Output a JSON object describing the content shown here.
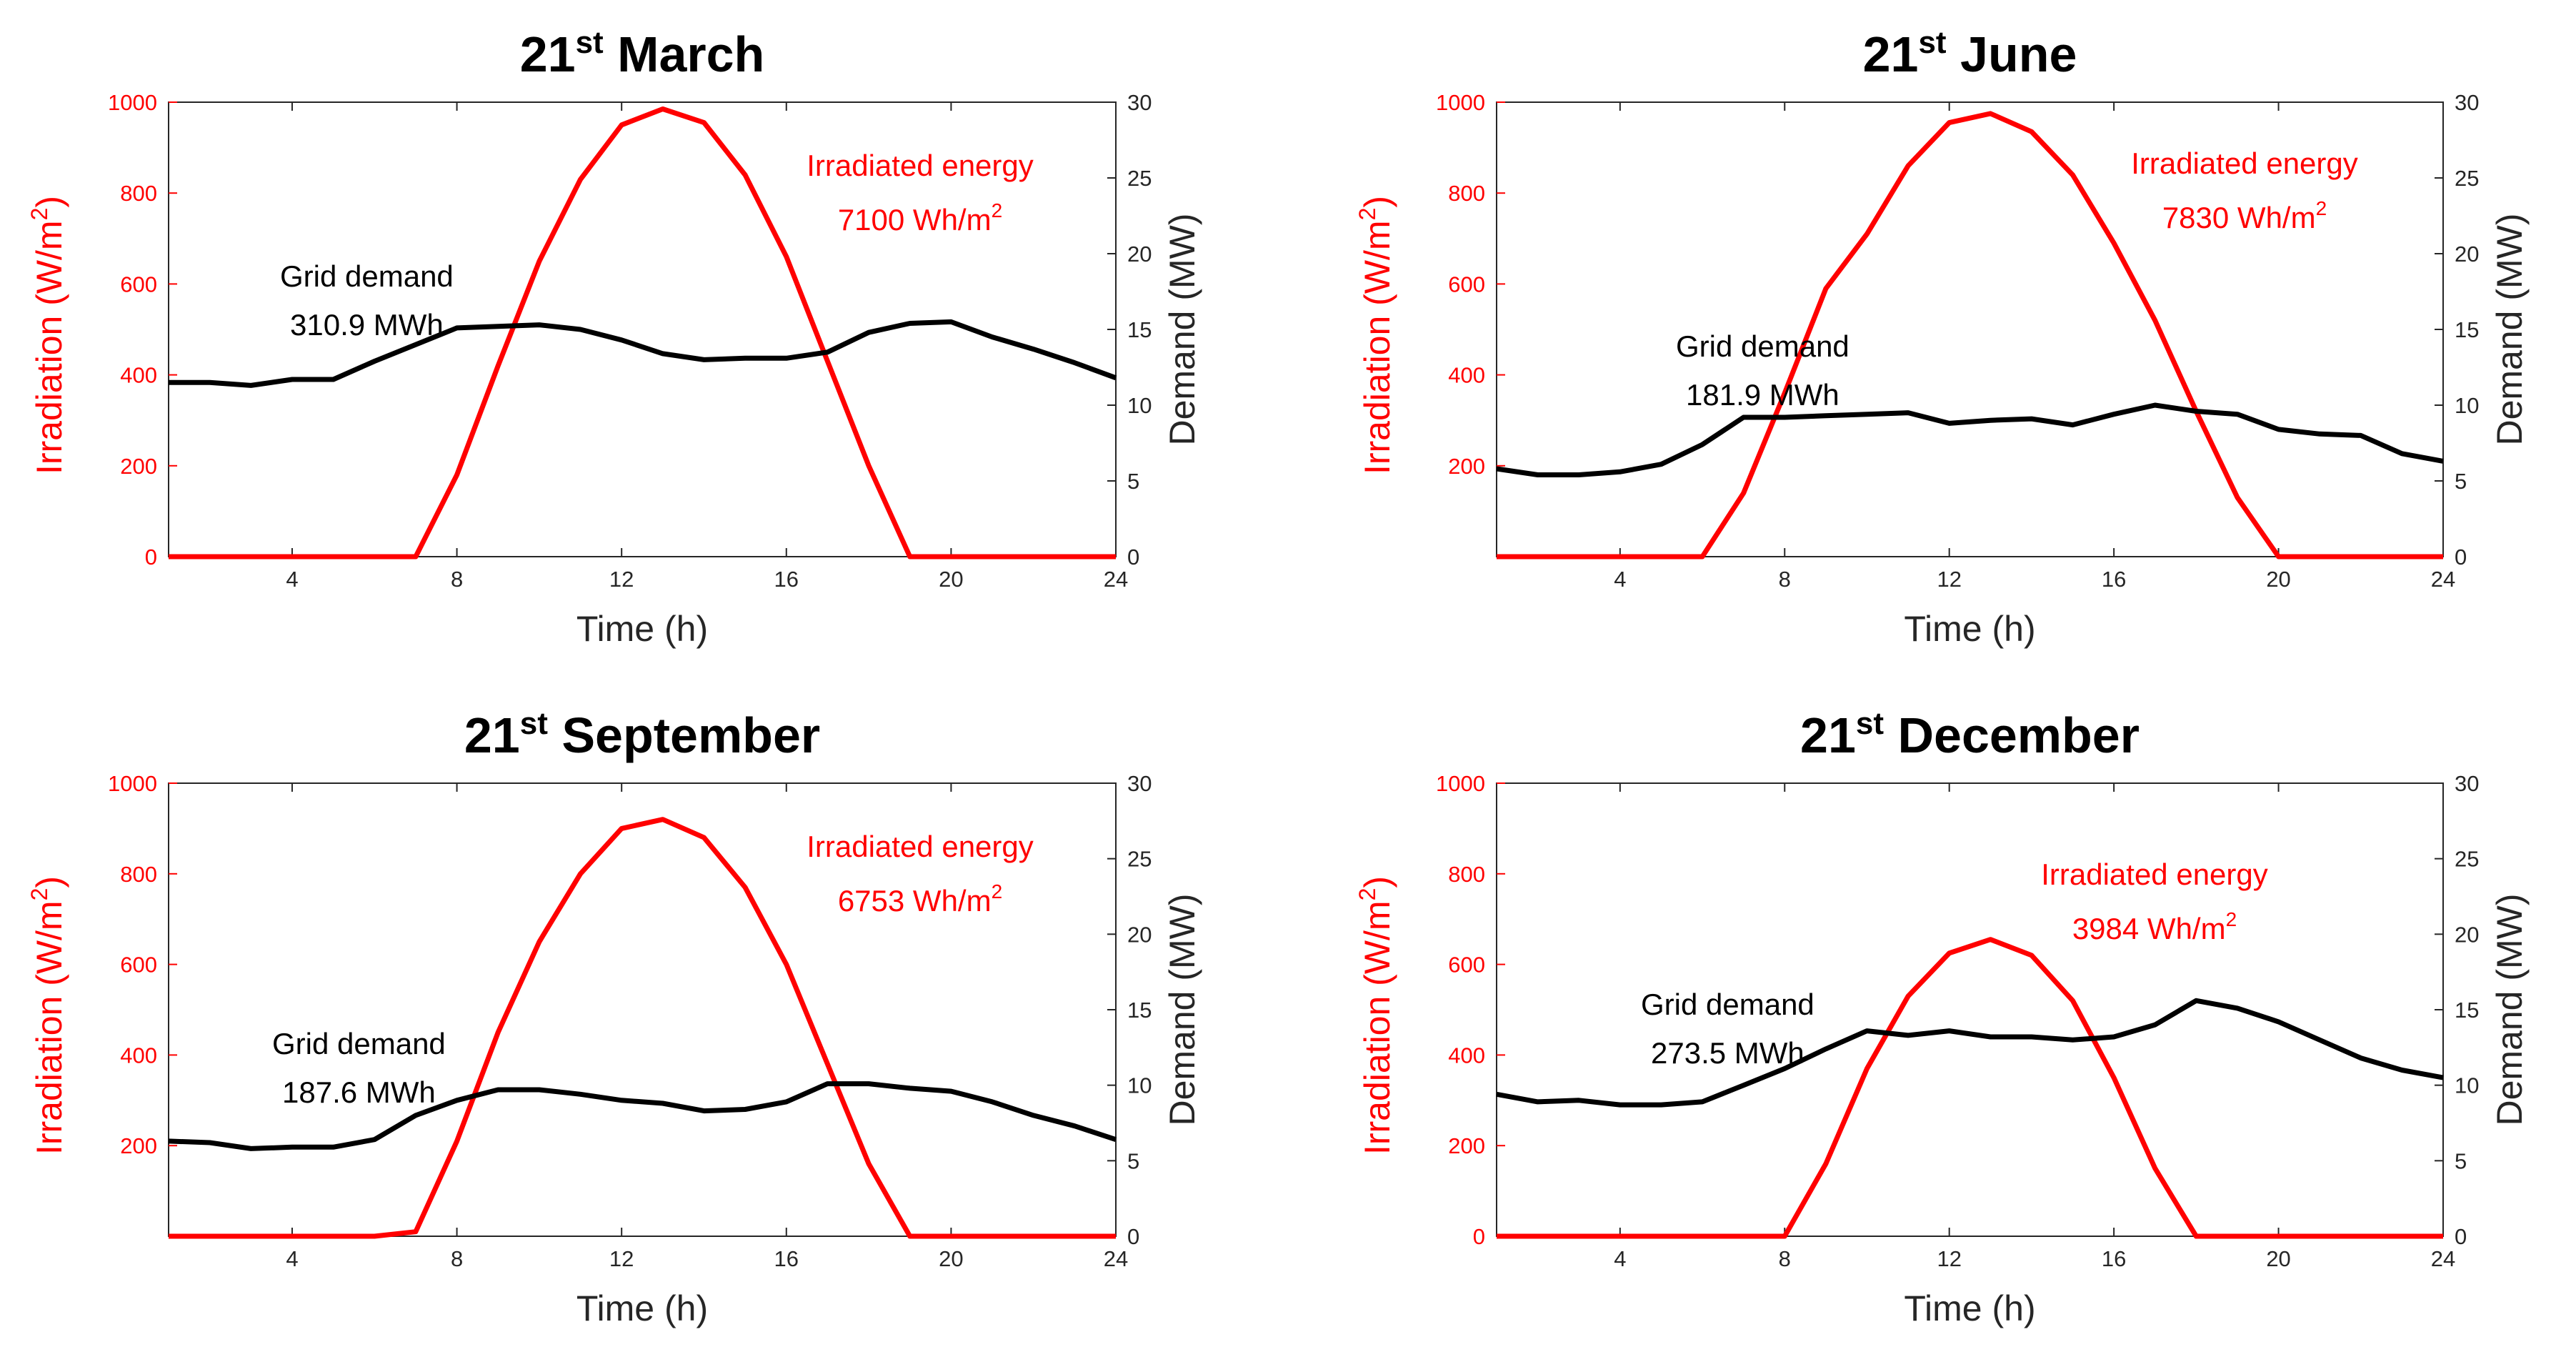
{
  "chart_data": [
    {
      "type": "line",
      "title": {
        "day": "21",
        "suffix": "st",
        "month": " March"
      },
      "xlabel": "Time (h)",
      "ylabel_left": {
        "text": "Irradiation (W/m",
        "sup": "2",
        "close": ")"
      },
      "ylabel_right": "Demand (MW)",
      "xlim": [
        1,
        24
      ],
      "xticks": [
        4,
        8,
        12,
        16,
        20,
        24
      ],
      "ylim_left": [
        0,
        1000
      ],
      "yticks_left": [
        0,
        200,
        400,
        600,
        800,
        1000
      ],
      "ylim_right": [
        0,
        30
      ],
      "yticks_right": [
        0,
        5,
        10,
        15,
        20,
        25,
        30
      ],
      "irradiation": {
        "name": "Irradiation",
        "axis": "left",
        "color": "#ff0000",
        "x": [
          1,
          2,
          3,
          4,
          5,
          6,
          7,
          8,
          9,
          10,
          11,
          12,
          13,
          14,
          15,
          16,
          17,
          18,
          19,
          20,
          21,
          22,
          23,
          24
        ],
        "y": [
          0,
          0,
          0,
          0,
          0,
          0,
          0,
          180,
          420,
          650,
          830,
          950,
          985,
          955,
          840,
          660,
          430,
          200,
          0,
          0,
          0,
          0,
          0,
          0
        ]
      },
      "demand": {
        "name": "Demand",
        "axis": "right",
        "color": "#000000",
        "x": [
          1,
          2,
          3,
          4,
          5,
          6,
          7,
          8,
          9,
          10,
          11,
          12,
          13,
          14,
          15,
          16,
          17,
          18,
          19,
          20,
          21,
          22,
          23,
          24
        ],
        "y": [
          11.5,
          11.5,
          11.3,
          11.7,
          11.7,
          12.9,
          14,
          15.1,
          15.2,
          15.3,
          15,
          14.3,
          13.4,
          13,
          13.1,
          13.1,
          13.5,
          14.8,
          15.4,
          15.5,
          14.5,
          13.7,
          12.8,
          11.8
        ]
      },
      "annotations": {
        "energy_label": "Irradiated energy",
        "energy_value": "7100 Wh/m",
        "energy_sup": "2",
        "demand_label": "Grid demand",
        "demand_value": "310.9 MWh"
      }
    },
    {
      "type": "line",
      "title": {
        "day": "21",
        "suffix": "st",
        "month": " June"
      },
      "xlabel": "Time (h)",
      "ylabel_left": {
        "text": "Irradiation (W/m",
        "sup": "2",
        "close": ")"
      },
      "ylabel_right": "Demand (MW)",
      "xlim": [
        1,
        24
      ],
      "xticks": [
        4,
        8,
        12,
        16,
        20,
        24
      ],
      "ylim_left": [
        0,
        1000
      ],
      "yticks_left": [
        200,
        400,
        600,
        800,
        1000
      ],
      "ylim_right": [
        0,
        30
      ],
      "yticks_right": [
        0,
        5,
        10,
        15,
        20,
        25,
        30
      ],
      "irradiation": {
        "name": "Irradiation",
        "axis": "left",
        "color": "#ff0000",
        "x": [
          1,
          2,
          3,
          4,
          5,
          6,
          7,
          8,
          9,
          10,
          11,
          12,
          13,
          14,
          15,
          16,
          17,
          18,
          19,
          20,
          21,
          22,
          23,
          24
        ],
        "y": [
          0,
          0,
          0,
          0,
          0,
          0,
          140,
          360,
          590,
          710,
          860,
          955,
          975,
          935,
          840,
          690,
          520,
          320,
          130,
          0,
          0,
          0,
          0,
          0
        ]
      },
      "demand": {
        "name": "Demand",
        "axis": "right",
        "color": "#000000",
        "x": [
          1,
          2,
          3,
          4,
          5,
          6,
          7,
          8,
          9,
          10,
          11,
          12,
          13,
          14,
          15,
          16,
          17,
          18,
          19,
          20,
          21,
          22,
          23,
          24
        ],
        "y": [
          5.8,
          5.4,
          5.4,
          5.6,
          6.1,
          7.4,
          9.2,
          9.2,
          9.3,
          9.4,
          9.5,
          8.8,
          9,
          9.1,
          8.7,
          9.4,
          10,
          9.6,
          9.4,
          8.4,
          8.1,
          8,
          6.8,
          6.3
        ]
      },
      "annotations": {
        "energy_label": "Irradiated energy",
        "energy_value": "7830 Wh/m",
        "energy_sup": "2",
        "demand_label": "Grid demand",
        "demand_value": "181.9 MWh"
      }
    },
    {
      "type": "line",
      "title": {
        "day": "21",
        "suffix": "st",
        "month": " September"
      },
      "xlabel": "Time (h)",
      "ylabel_left": {
        "text": "Irradiation (W/m",
        "sup": "2",
        "close": ")"
      },
      "ylabel_right": "Demand (MW)",
      "xlim": [
        1,
        24
      ],
      "xticks": [
        4,
        8,
        12,
        16,
        20,
        24
      ],
      "ylim_left": [
        0,
        1000
      ],
      "yticks_left": [
        200,
        400,
        600,
        800,
        1000
      ],
      "ylim_right": [
        0,
        30
      ],
      "yticks_right": [
        0,
        5,
        10,
        15,
        20,
        25,
        30
      ],
      "irradiation": {
        "name": "Irradiation",
        "axis": "left",
        "color": "#ff0000",
        "x": [
          1,
          2,
          3,
          4,
          5,
          6,
          7,
          8,
          9,
          10,
          11,
          12,
          13,
          14,
          15,
          16,
          17,
          18,
          19,
          20,
          21,
          22,
          23,
          24
        ],
        "y": [
          0,
          0,
          0,
          0,
          0,
          0,
          10,
          210,
          450,
          650,
          800,
          900,
          920,
          880,
          770,
          600,
          380,
          160,
          0,
          0,
          0,
          0,
          0,
          0
        ]
      },
      "demand": {
        "name": "Demand",
        "axis": "right",
        "color": "#000000",
        "x": [
          1,
          2,
          3,
          4,
          5,
          6,
          7,
          8,
          9,
          10,
          11,
          12,
          13,
          14,
          15,
          16,
          17,
          18,
          19,
          20,
          21,
          22,
          23,
          24
        ],
        "y": [
          6.3,
          6.2,
          5.8,
          5.9,
          5.9,
          6.4,
          8,
          9,
          9.7,
          9.7,
          9.4,
          9,
          8.8,
          8.3,
          8.4,
          8.9,
          10.1,
          10.1,
          9.8,
          9.6,
          8.9,
          8,
          7.3,
          6.4
        ]
      },
      "annotations": {
        "energy_label": "Irradiated energy",
        "energy_value": "6753 Wh/m",
        "energy_sup": "2",
        "demand_label": "Grid demand",
        "demand_value": "187.6 MWh"
      }
    },
    {
      "type": "line",
      "title": {
        "day": "21",
        "suffix": "st",
        "month": " December"
      },
      "xlabel": "Time (h)",
      "ylabel_left": {
        "text": "Irradiation (W/m",
        "sup": "2",
        "close": ")"
      },
      "ylabel_right": "Demand (MW)",
      "xlim": [
        1,
        24
      ],
      "xticks": [
        4,
        8,
        12,
        16,
        20,
        24
      ],
      "ylim_left": [
        0,
        1000
      ],
      "yticks_left": [
        0,
        200,
        400,
        600,
        800,
        1000
      ],
      "ylim_right": [
        0,
        30
      ],
      "yticks_right": [
        0,
        5,
        10,
        15,
        20,
        25,
        30
      ],
      "irradiation": {
        "name": "Irradiation",
        "axis": "left",
        "color": "#ff0000",
        "x": [
          1,
          2,
          3,
          4,
          5,
          6,
          7,
          8,
          9,
          10,
          11,
          12,
          13,
          14,
          15,
          16,
          17,
          18,
          19,
          20,
          21,
          22,
          23,
          24
        ],
        "y": [
          0,
          0,
          0,
          0,
          0,
          0,
          0,
          0,
          160,
          370,
          530,
          625,
          655,
          620,
          520,
          350,
          150,
          0,
          0,
          0,
          0,
          0,
          0,
          0
        ]
      },
      "demand": {
        "name": "Demand",
        "axis": "right",
        "color": "#000000",
        "x": [
          1,
          2,
          3,
          4,
          5,
          6,
          7,
          8,
          9,
          10,
          11,
          12,
          13,
          14,
          15,
          16,
          17,
          18,
          19,
          20,
          21,
          22,
          23,
          24
        ],
        "y": [
          9.4,
          8.9,
          9,
          8.7,
          8.7,
          8.9,
          10,
          11.1,
          12.4,
          13.6,
          13.3,
          13.6,
          13.2,
          13.2,
          13,
          13.2,
          14,
          15.6,
          15.1,
          14.2,
          13,
          11.8,
          11,
          10.5
        ]
      },
      "annotations": {
        "energy_label": "Irradiated energy",
        "energy_value": "3984 Wh/m",
        "energy_sup": "2",
        "demand_label": "Grid demand",
        "demand_value": "273.5 MWh"
      }
    }
  ]
}
